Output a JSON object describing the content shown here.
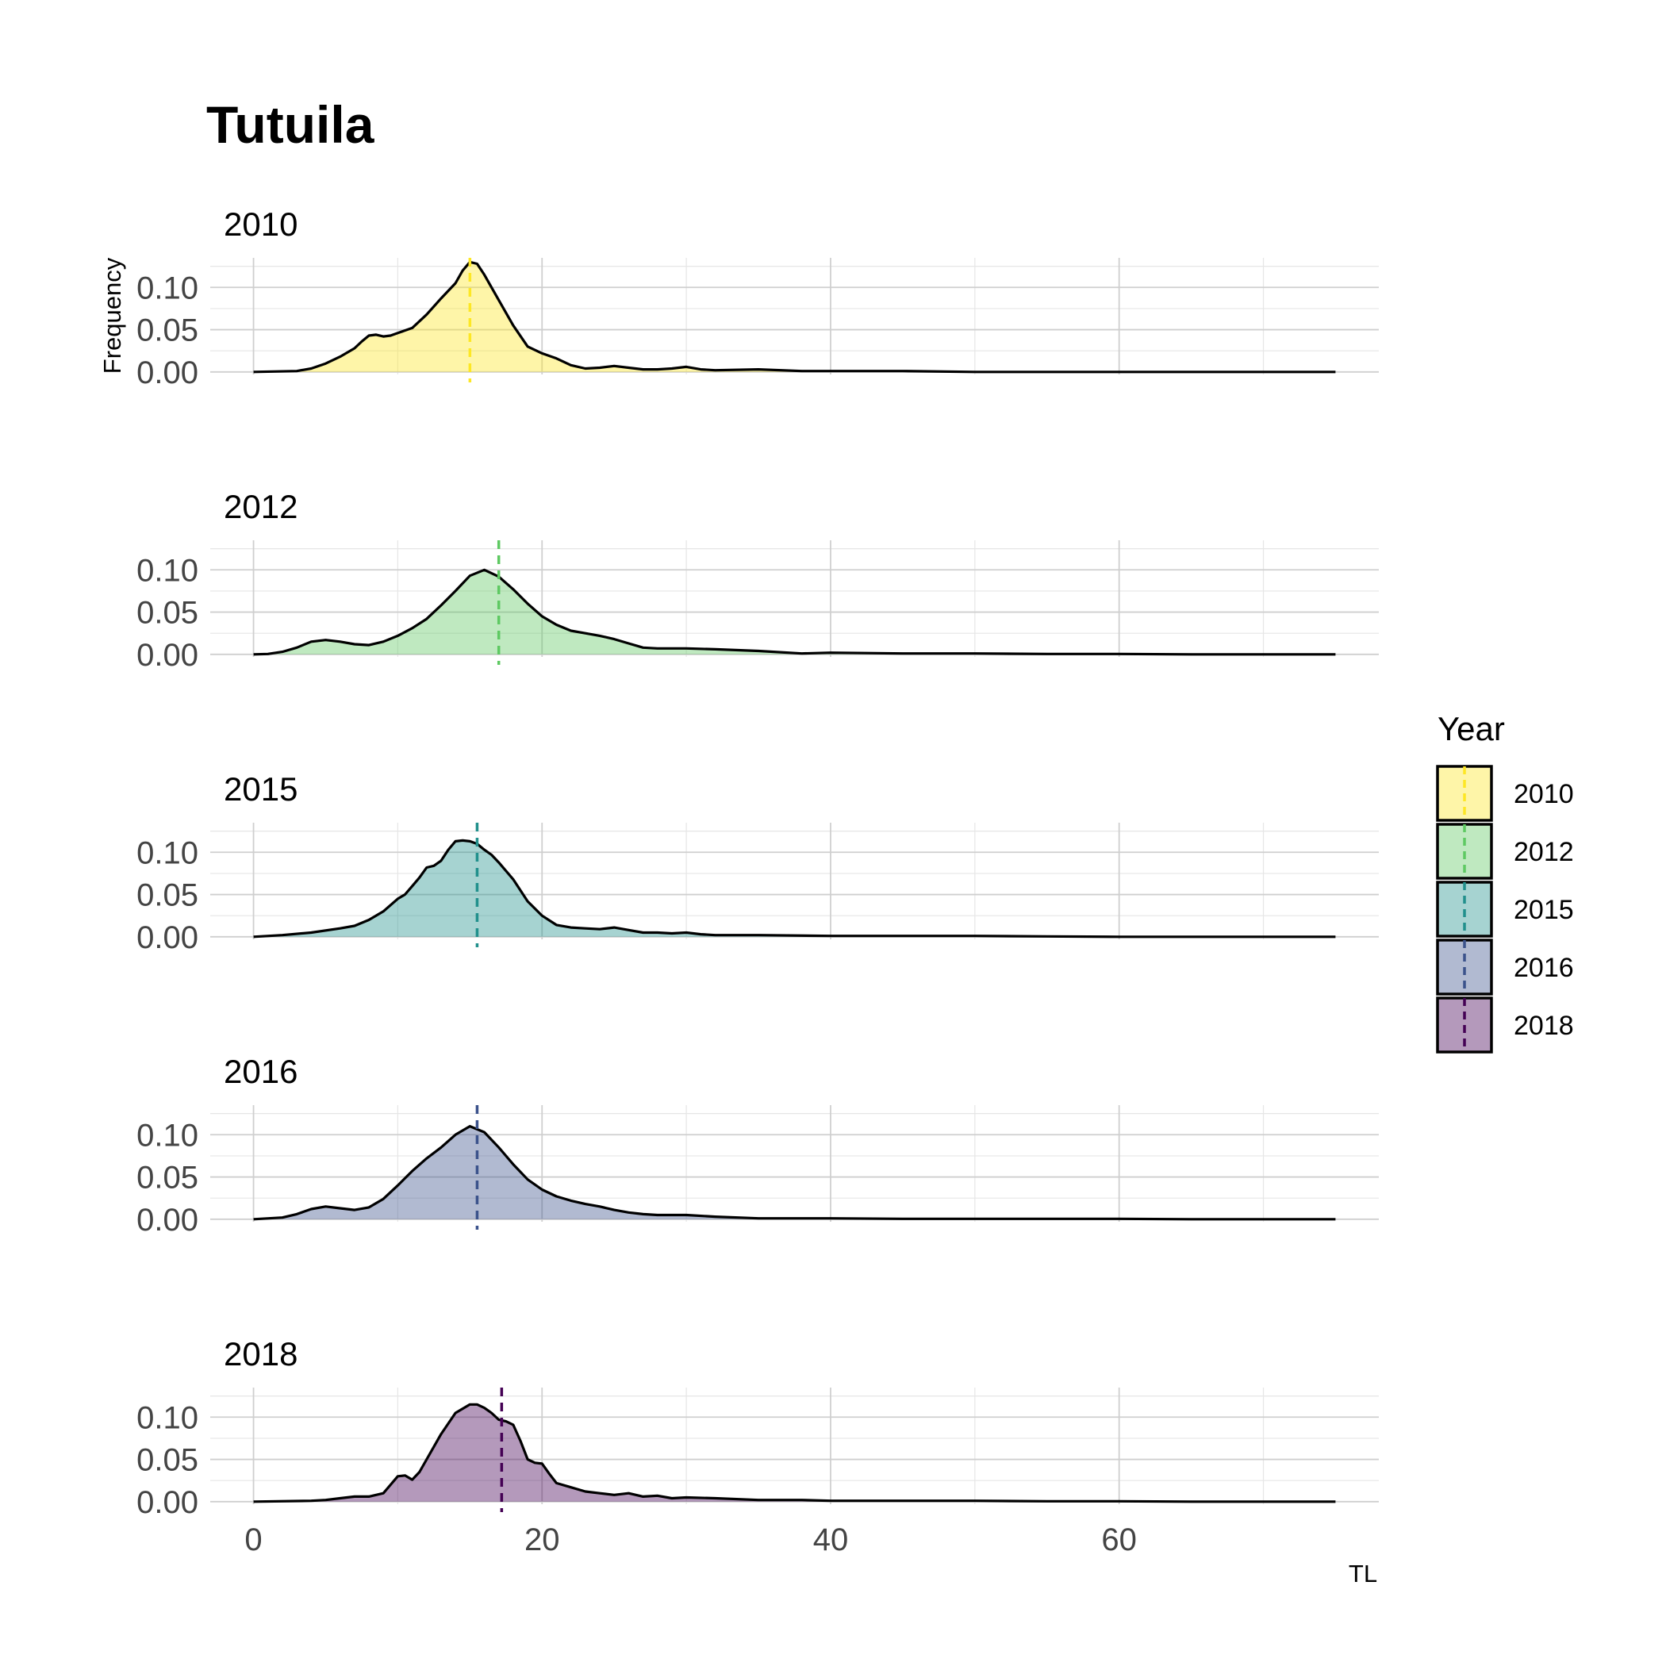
{
  "chart_data": {
    "type": "area",
    "title": "Tutuila",
    "xlabel": "TL",
    "ylabel": "Frequency",
    "xlim": [
      -3,
      78
    ],
    "ylim": [
      -0.003,
      0.135
    ],
    "x_ticks": [
      0,
      20,
      40,
      60
    ],
    "x_tick_labels": [
      "0",
      "20",
      "40",
      "60"
    ],
    "y_ticks": [
      0.0,
      0.05,
      0.1
    ],
    "y_tick_labels": [
      "0.00",
      "0.05",
      "0.10"
    ],
    "grid": true,
    "legend": {
      "title": "Year",
      "position": "right",
      "entries": [
        "2010",
        "2012",
        "2015",
        "2016",
        "2018"
      ]
    },
    "panels": [
      {
        "label": "2010",
        "color": "#FDE725",
        "mean": 15.0,
        "x": [
          0,
          3,
          4,
          5,
          6,
          7,
          7.5,
          8,
          8.5,
          9,
          9.5,
          10,
          11,
          12,
          13,
          14,
          14.5,
          15,
          15.5,
          16,
          17,
          18,
          19,
          20,
          21,
          22,
          23,
          24,
          25,
          26,
          27,
          28,
          29,
          30,
          31,
          32,
          35,
          38,
          40,
          45,
          50,
          55,
          60,
          65,
          70,
          75
        ],
        "y": [
          0.0,
          0.001,
          0.004,
          0.01,
          0.018,
          0.028,
          0.036,
          0.043,
          0.044,
          0.042,
          0.043,
          0.046,
          0.052,
          0.068,
          0.087,
          0.105,
          0.12,
          0.13,
          0.128,
          0.115,
          0.085,
          0.055,
          0.03,
          0.022,
          0.016,
          0.008,
          0.004,
          0.005,
          0.007,
          0.005,
          0.003,
          0.003,
          0.004,
          0.006,
          0.003,
          0.002,
          0.003,
          0.001,
          0.001,
          0.001,
          0.0,
          0.0,
          0.0,
          0.0,
          0.0,
          0.0
        ]
      },
      {
        "label": "2012",
        "color": "#5EC962",
        "mean": 17.0,
        "x": [
          0,
          1,
          2,
          3,
          4,
          5,
          6,
          7,
          8,
          9,
          10,
          11,
          12,
          13,
          14,
          15,
          16,
          17,
          18,
          19,
          20,
          21,
          22,
          23,
          24,
          25,
          26,
          27,
          28,
          30,
          32,
          35,
          38,
          40,
          45,
          50,
          55,
          60,
          65,
          70,
          75
        ],
        "y": [
          0.0,
          0.0005,
          0.003,
          0.008,
          0.015,
          0.017,
          0.015,
          0.012,
          0.011,
          0.015,
          0.022,
          0.031,
          0.042,
          0.058,
          0.075,
          0.093,
          0.1,
          0.092,
          0.077,
          0.06,
          0.045,
          0.035,
          0.028,
          0.025,
          0.022,
          0.018,
          0.013,
          0.008,
          0.007,
          0.007,
          0.006,
          0.004,
          0.001,
          0.002,
          0.001,
          0.001,
          0.0005,
          0.0005,
          0.0,
          0.0,
          0.0
        ]
      },
      {
        "label": "2015",
        "color": "#21908C",
        "mean": 15.5,
        "x": [
          0,
          2,
          4,
          6,
          7,
          8,
          9,
          10,
          10.5,
          11,
          11.5,
          12,
          12.5,
          13,
          13.5,
          14,
          14.5,
          15,
          15.5,
          16,
          16.5,
          17,
          18,
          19,
          20,
          21,
          22,
          23,
          24,
          25,
          26,
          27,
          28,
          29,
          30,
          31,
          32,
          35,
          40,
          45,
          50,
          55,
          60,
          65,
          70,
          75
        ],
        "y": [
          0.0,
          0.002,
          0.005,
          0.01,
          0.013,
          0.02,
          0.03,
          0.045,
          0.05,
          0.06,
          0.07,
          0.082,
          0.084,
          0.09,
          0.103,
          0.113,
          0.114,
          0.113,
          0.11,
          0.103,
          0.097,
          0.088,
          0.068,
          0.042,
          0.025,
          0.014,
          0.011,
          0.01,
          0.009,
          0.011,
          0.008,
          0.005,
          0.005,
          0.004,
          0.005,
          0.003,
          0.002,
          0.002,
          0.001,
          0.001,
          0.001,
          0.0005,
          0.0,
          0.0,
          0.0,
          0.0
        ]
      },
      {
        "label": "2016",
        "color": "#3B528B",
        "mean": 15.5,
        "x": [
          0,
          2,
          3,
          4,
          5,
          6,
          7,
          8,
          9,
          10,
          11,
          12,
          13,
          14,
          15,
          16,
          17,
          18,
          19,
          20,
          21,
          22,
          23,
          24,
          25,
          26,
          27,
          28,
          30,
          32,
          35,
          40,
          45,
          50,
          55,
          60,
          65,
          70,
          75
        ],
        "y": [
          0.0,
          0.002,
          0.006,
          0.012,
          0.015,
          0.013,
          0.011,
          0.014,
          0.024,
          0.04,
          0.057,
          0.072,
          0.085,
          0.1,
          0.11,
          0.103,
          0.085,
          0.065,
          0.047,
          0.035,
          0.027,
          0.022,
          0.018,
          0.015,
          0.011,
          0.008,
          0.006,
          0.005,
          0.005,
          0.003,
          0.001,
          0.001,
          0.0005,
          0.0005,
          0.0005,
          0.0005,
          0.0,
          0.0,
          0.0
        ]
      },
      {
        "label": "2018",
        "color": "#440154",
        "mean": 17.2,
        "x": [
          0,
          4,
          5,
          6,
          7,
          8,
          9,
          9.5,
          10,
          10.5,
          11,
          11.5,
          12,
          13,
          14,
          15,
          15.5,
          16,
          16.5,
          17,
          17.5,
          18,
          18.5,
          19,
          19.5,
          20,
          20.5,
          21,
          22,
          23,
          24,
          25,
          26,
          27,
          28,
          29,
          30,
          32,
          35,
          38,
          40,
          45,
          50,
          55,
          60,
          65,
          70,
          75
        ],
        "y": [
          0.0,
          0.001,
          0.002,
          0.004,
          0.006,
          0.006,
          0.01,
          0.02,
          0.03,
          0.031,
          0.026,
          0.035,
          0.05,
          0.08,
          0.105,
          0.115,
          0.115,
          0.111,
          0.105,
          0.097,
          0.095,
          0.091,
          0.072,
          0.05,
          0.046,
          0.045,
          0.033,
          0.022,
          0.017,
          0.012,
          0.01,
          0.008,
          0.01,
          0.006,
          0.007,
          0.004,
          0.005,
          0.004,
          0.002,
          0.002,
          0.001,
          0.001,
          0.001,
          0.0005,
          0.0005,
          0.0,
          0.0,
          0.0
        ]
      }
    ]
  }
}
